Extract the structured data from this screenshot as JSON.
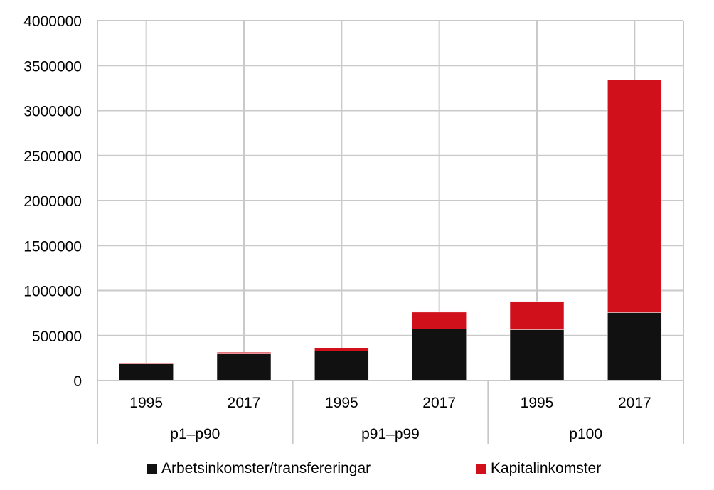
{
  "chart_data": {
    "type": "bar",
    "stacked": true,
    "groups": [
      "p1–p90",
      "p91–p99",
      "p100"
    ],
    "categories": [
      "1995",
      "2017",
      "1995",
      "2017",
      "1995",
      "2017"
    ],
    "series": [
      {
        "name": "Arbetsinkomster/transfereringar",
        "color": "#111111",
        "values": [
          185000,
          295000,
          330000,
          575000,
          565000,
          755000
        ]
      },
      {
        "name": "Kapitalinkomster",
        "color": "#d0111b",
        "values": [
          10000,
          20000,
          30000,
          185000,
          315000,
          2585000
        ]
      }
    ],
    "ylim": [
      0,
      4000000
    ],
    "yticks": [
      "0",
      "500000",
      "1000000",
      "1500000",
      "2000000",
      "2500000",
      "3000000",
      "3500000",
      "4000000"
    ],
    "grid": true,
    "legend_position": "bottom",
    "title": "",
    "xlabel": "",
    "ylabel": ""
  }
}
